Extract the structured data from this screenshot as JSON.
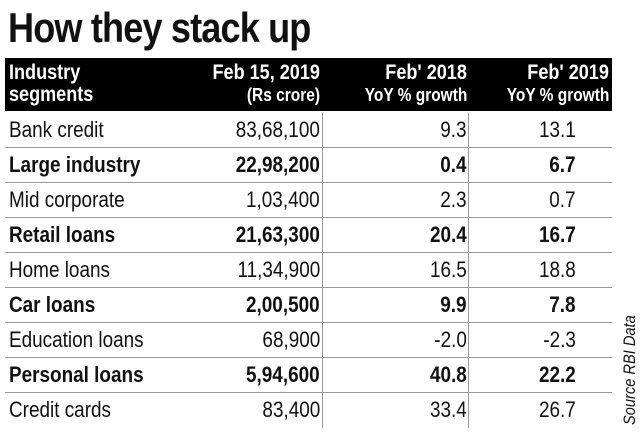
{
  "title": "How they stack up",
  "columns": {
    "segment": {
      "line1": "Industry",
      "line2": "segments"
    },
    "value": {
      "line1": "Feb 15, 2019",
      "line2": "(Rs crore)"
    },
    "yoy2018": {
      "line1": "Feb' 2018",
      "line2": "YoY % growth"
    },
    "yoy2019": {
      "line1": "Feb' 2019",
      "line2": "YoY % growth"
    }
  },
  "rows": [
    {
      "segment": "Bank credit",
      "value": "83,68,100",
      "yoy2018": "9.3",
      "yoy2019": "13.1",
      "bold": false
    },
    {
      "segment": "Large industry",
      "value": "22,98,200",
      "yoy2018": "0.4",
      "yoy2019": "6.7",
      "bold": true
    },
    {
      "segment": "Mid corporate",
      "value": "1,03,400",
      "yoy2018": "2.3",
      "yoy2019": "0.7",
      "bold": false
    },
    {
      "segment": "Retail loans",
      "value": "21,63,300",
      "yoy2018": "20.4",
      "yoy2019": "16.7",
      "bold": true
    },
    {
      "segment": "Home loans",
      "value": "11,34,900",
      "yoy2018": "16.5",
      "yoy2019": "18.8",
      "bold": false
    },
    {
      "segment": "Car loans",
      "value": "2,00,500",
      "yoy2018": "9.9",
      "yoy2019": "7.8",
      "bold": true
    },
    {
      "segment": "Education loans",
      "value": "68,900",
      "yoy2018": "-2.0",
      "yoy2019": "-2.3",
      "bold": false
    },
    {
      "segment": "Personal loans",
      "value": "5,94,600",
      "yoy2018": "40.8",
      "yoy2019": "22.2",
      "bold": true
    },
    {
      "segment": "Credit cards",
      "value": "83,400",
      "yoy2018": "33.4",
      "yoy2019": "26.7",
      "bold": false
    }
  ],
  "source": "Source RBI Data"
}
